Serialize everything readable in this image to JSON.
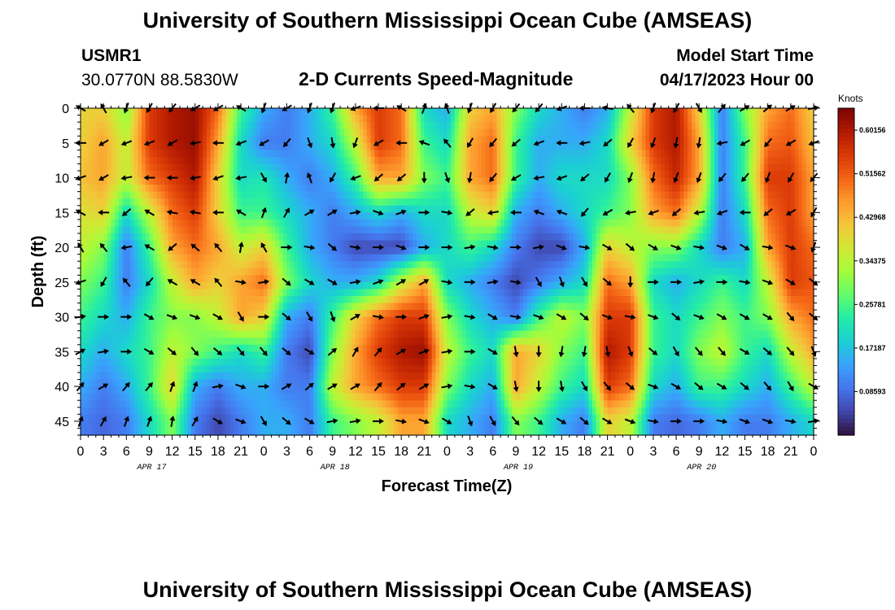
{
  "header": {
    "title": "University of Southern Mississippi Ocean Cube (AMSEAS)",
    "station_id": "USMR1",
    "station_coords": "30.0770N  88.5830W",
    "subtitle": "2-D Currents Speed-Magnitude",
    "model_start_label": "Model Start Time",
    "model_start_value": "04/17/2023 Hour 00"
  },
  "footer": {
    "title": "University of Southern Mississippi Ocean Cube (AMSEAS)"
  },
  "chart_data": {
    "type": "heatmap",
    "title": "2-D Currents Speed-Magnitude",
    "xlabel": "Forecast Time(Z)",
    "ylabel": "Depth (ft)",
    "x_ticks": [
      "0",
      "3",
      "6",
      "9",
      "12",
      "15",
      "18",
      "21",
      "0",
      "3",
      "6",
      "9",
      "12",
      "15",
      "18",
      "21",
      "0",
      "3",
      "6",
      "9",
      "12",
      "15",
      "18",
      "21",
      "0",
      "3",
      "6",
      "9",
      "12",
      "15",
      "18",
      "21",
      "0"
    ],
    "x_range_hours": [
      0,
      96
    ],
    "date_labels": [
      {
        "label": "APR 17",
        "hour": 9
      },
      {
        "label": "APR 18",
        "hour": 33
      },
      {
        "label": "APR 19",
        "hour": 57
      },
      {
        "label": "APR 20",
        "hour": 81
      }
    ],
    "y_ticks": [
      "0",
      "5",
      "10",
      "15",
      "20",
      "25",
      "30",
      "35",
      "40",
      "45"
    ],
    "y_range_ft": [
      0,
      47
    ],
    "colorbar": {
      "unit": "Knots",
      "min": 0.0,
      "max": 0.645,
      "tick_labels": [
        "0.60156",
        "0.51562",
        "0.42968",
        "0.34375",
        "0.25781",
        "0.17187",
        "0.08593"
      ],
      "tick_values": [
        0.60156,
        0.51562,
        0.42968,
        0.34375,
        0.25781,
        0.17187,
        0.08593
      ],
      "palette": [
        "#30123b",
        "#4145ab",
        "#4675ed",
        "#39a2fc",
        "#1bcfd4",
        "#24eca6",
        "#61fc6c",
        "#a4fc3b",
        "#d1e834",
        "#f3c63a",
        "#fe9b2d",
        "#f36315",
        "#d93806",
        "#b11901",
        "#7a0403"
      ]
    },
    "depth_rows_ft": [
      0,
      5,
      10,
      15,
      20,
      25,
      30,
      35,
      40,
      45
    ],
    "speed_knots": [
      [
        0.4,
        0.4,
        0.3,
        0.55,
        0.6,
        0.62,
        0.5,
        0.25,
        0.15,
        0.1,
        0.15,
        0.25,
        0.45,
        0.55,
        0.5,
        0.2,
        0.15,
        0.4,
        0.45,
        0.3,
        0.2,
        0.15,
        0.1,
        0.15,
        0.35,
        0.55,
        0.6,
        0.4,
        0.1,
        0.3,
        0.45,
        0.5,
        0.4
      ],
      [
        0.4,
        0.45,
        0.35,
        0.55,
        0.6,
        0.62,
        0.45,
        0.2,
        0.1,
        0.1,
        0.15,
        0.2,
        0.35,
        0.55,
        0.5,
        0.25,
        0.2,
        0.45,
        0.5,
        0.25,
        0.15,
        0.15,
        0.15,
        0.2,
        0.4,
        0.55,
        0.6,
        0.45,
        0.1,
        0.25,
        0.5,
        0.52,
        0.42
      ],
      [
        0.42,
        0.45,
        0.35,
        0.5,
        0.55,
        0.6,
        0.4,
        0.2,
        0.22,
        0.15,
        0.1,
        0.15,
        0.25,
        0.45,
        0.45,
        0.3,
        0.25,
        0.45,
        0.5,
        0.25,
        0.15,
        0.2,
        0.2,
        0.2,
        0.3,
        0.5,
        0.58,
        0.45,
        0.1,
        0.25,
        0.55,
        0.55,
        0.45
      ],
      [
        0.38,
        0.4,
        0.2,
        0.35,
        0.5,
        0.55,
        0.4,
        0.25,
        0.25,
        0.2,
        0.15,
        0.1,
        0.15,
        0.2,
        0.15,
        0.2,
        0.2,
        0.35,
        0.4,
        0.15,
        0.1,
        0.15,
        0.2,
        0.25,
        0.3,
        0.45,
        0.5,
        0.35,
        0.1,
        0.2,
        0.5,
        0.55,
        0.45
      ],
      [
        0.35,
        0.3,
        0.1,
        0.25,
        0.45,
        0.5,
        0.45,
        0.35,
        0.4,
        0.25,
        0.15,
        0.1,
        0.05,
        0.05,
        0.05,
        0.15,
        0.2,
        0.25,
        0.2,
        0.1,
        0.05,
        0.05,
        0.15,
        0.4,
        0.35,
        0.3,
        0.3,
        0.2,
        0.1,
        0.15,
        0.45,
        0.55,
        0.5
      ],
      [
        0.3,
        0.25,
        0.1,
        0.2,
        0.35,
        0.45,
        0.4,
        0.45,
        0.5,
        0.3,
        0.2,
        0.15,
        0.15,
        0.2,
        0.35,
        0.45,
        0.2,
        0.15,
        0.1,
        0.05,
        0.1,
        0.15,
        0.2,
        0.5,
        0.45,
        0.2,
        0.15,
        0.2,
        0.25,
        0.2,
        0.35,
        0.55,
        0.52
      ],
      [
        0.25,
        0.2,
        0.15,
        0.25,
        0.3,
        0.3,
        0.35,
        0.45,
        0.4,
        0.15,
        0.1,
        0.25,
        0.4,
        0.5,
        0.55,
        0.55,
        0.3,
        0.2,
        0.15,
        0.1,
        0.25,
        0.35,
        0.3,
        0.55,
        0.55,
        0.25,
        0.2,
        0.25,
        0.3,
        0.25,
        0.3,
        0.45,
        0.5
      ],
      [
        0.2,
        0.15,
        0.2,
        0.25,
        0.35,
        0.3,
        0.25,
        0.2,
        0.25,
        0.1,
        0.05,
        0.3,
        0.45,
        0.55,
        0.6,
        0.62,
        0.35,
        0.25,
        0.2,
        0.45,
        0.4,
        0.3,
        0.25,
        0.6,
        0.55,
        0.25,
        0.2,
        0.3,
        0.35,
        0.25,
        0.2,
        0.35,
        0.45
      ],
      [
        0.15,
        0.1,
        0.15,
        0.25,
        0.4,
        0.15,
        0.1,
        0.15,
        0.15,
        0.1,
        0.1,
        0.35,
        0.45,
        0.5,
        0.55,
        0.55,
        0.3,
        0.2,
        0.15,
        0.45,
        0.35,
        0.25,
        0.2,
        0.55,
        0.5,
        0.2,
        0.15,
        0.25,
        0.25,
        0.2,
        0.15,
        0.25,
        0.35
      ],
      [
        0.1,
        0.08,
        0.1,
        0.2,
        0.3,
        0.1,
        0.05,
        0.1,
        0.15,
        0.15,
        0.1,
        0.25,
        0.3,
        0.35,
        0.45,
        0.45,
        0.2,
        0.15,
        0.1,
        0.3,
        0.25,
        0.15,
        0.1,
        0.4,
        0.35,
        0.1,
        0.08,
        0.1,
        0.15,
        0.1,
        0.1,
        0.15,
        0.2
      ]
    ],
    "direction_deg": [
      [
        300,
        330,
        200,
        210,
        220,
        240,
        240,
        300,
        200,
        240,
        200,
        200,
        250,
        270,
        300,
        20,
        340,
        200,
        210,
        220,
        220,
        250,
        270,
        280,
        320,
        200,
        210,
        150,
        40,
        60,
        50,
        60,
        80
      ],
      [
        270,
        240,
        250,
        250,
        240,
        260,
        270,
        250,
        240,
        220,
        160,
        170,
        200,
        240,
        270,
        290,
        320,
        210,
        220,
        230,
        250,
        270,
        260,
        230,
        210,
        200,
        190,
        190,
        260,
        240,
        220,
        240,
        250
      ],
      [
        250,
        240,
        260,
        270,
        270,
        260,
        250,
        260,
        150,
        10,
        340,
        210,
        250,
        230,
        230,
        180,
        160,
        190,
        220,
        240,
        260,
        250,
        230,
        210,
        200,
        190,
        200,
        200,
        220,
        220,
        200,
        210,
        220
      ],
      [
        300,
        270,
        230,
        300,
        280,
        280,
        270,
        300,
        20,
        30,
        60,
        60,
        80,
        110,
        70,
        90,
        100,
        230,
        260,
        270,
        290,
        290,
        220,
        240,
        260,
        250,
        230,
        260,
        250,
        270,
        230,
        240,
        210
      ],
      [
        330,
        320,
        260,
        300,
        230,
        310,
        320,
        10,
        330,
        90,
        100,
        130,
        100,
        90,
        110,
        90,
        90,
        80,
        100,
        90,
        80,
        110,
        100,
        120,
        130,
        120,
        110,
        100,
        110,
        120,
        100,
        110,
        200
      ],
      [
        250,
        210,
        320,
        220,
        300,
        300,
        320,
        100,
        80,
        130,
        120,
        120,
        80,
        70,
        60,
        60,
        100,
        90,
        80,
        100,
        150,
        160,
        150,
        130,
        180,
        90,
        90,
        80,
        90,
        100,
        110,
        120,
        130
      ],
      [
        80,
        90,
        90,
        120,
        110,
        110,
        120,
        150,
        90,
        130,
        150,
        160,
        60,
        100,
        90,
        70,
        80,
        100,
        120,
        100,
        110,
        120,
        130,
        110,
        100,
        110,
        130,
        110,
        120,
        120,
        120,
        140,
        130
      ],
      [
        60,
        80,
        90,
        120,
        130,
        140,
        130,
        140,
        140,
        130,
        120,
        50,
        30,
        40,
        60,
        70,
        80,
        90,
        120,
        170,
        180,
        190,
        190,
        170,
        160,
        130,
        150,
        140,
        140,
        120,
        130,
        140,
        160
      ],
      [
        40,
        60,
        40,
        40,
        20,
        20,
        80,
        110,
        90,
        60,
        50,
        60,
        60,
        40,
        50,
        60,
        80,
        100,
        120,
        170,
        180,
        170,
        150,
        140,
        130,
        110,
        120,
        130,
        120,
        130,
        140,
        150,
        120
      ],
      [
        20,
        30,
        20,
        20,
        10,
        30,
        120,
        110,
        150,
        130,
        120,
        80,
        80,
        90,
        100,
        110,
        120,
        160,
        150,
        140,
        130,
        120,
        130,
        120,
        110,
        100,
        90,
        90,
        100,
        110,
        110,
        100,
        80
      ]
    ]
  }
}
